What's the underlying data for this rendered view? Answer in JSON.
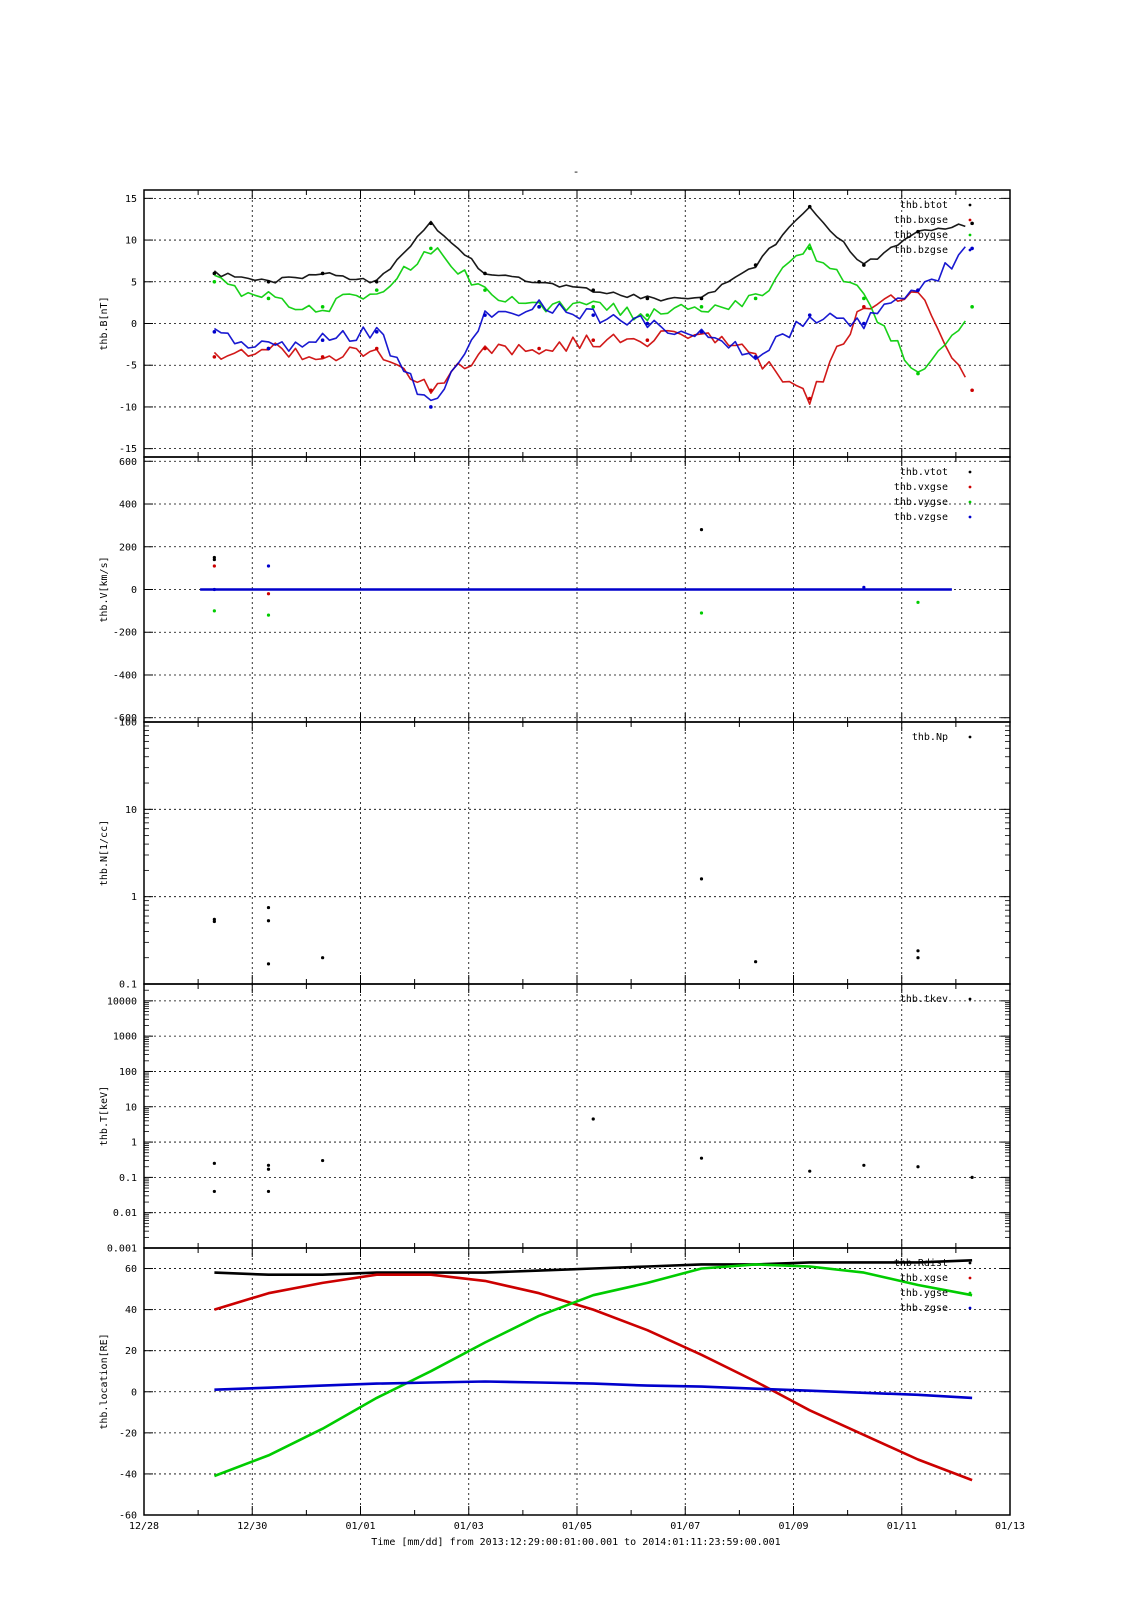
{
  "page": {
    "title": "-",
    "footer": "Time [mm/dd]  from 2013:12:29:00:01:00.001  to  2014:01:11:23:59:00.001"
  },
  "colors": {
    "black": "#000000",
    "red": "#cc0000",
    "green": "#00cc00",
    "blue": "#0000cc"
  },
  "chart_data": [
    {
      "type": "scatter",
      "ylabel": "thb.B[nT]",
      "ylim": [
        -16,
        16
      ],
      "yticks": [
        -15,
        -10,
        -5,
        0,
        5,
        10,
        15
      ],
      "x_range": [
        "2013-12-28",
        "2014-01-13"
      ],
      "series": [
        {
          "name": "thb.btot",
          "color": "black",
          "x": [
            "12/29",
            "12/30",
            "12/31",
            "01/01",
            "01/02",
            "01/03",
            "01/04",
            "01/05",
            "01/06",
            "01/07",
            "01/08",
            "01/09",
            "01/10",
            "01/11",
            "01/12"
          ],
          "values": [
            6,
            5,
            6,
            5,
            12,
            6,
            5,
            4,
            3,
            3,
            7,
            14,
            7,
            11,
            12
          ]
        },
        {
          "name": "thb.bxgse",
          "color": "red",
          "x": [
            "12/29",
            "12/30",
            "12/31",
            "01/01",
            "01/02",
            "01/03",
            "01/04",
            "01/05",
            "01/06",
            "01/07",
            "01/08",
            "01/09",
            "01/10",
            "01/11",
            "01/12"
          ],
          "values": [
            -4,
            -3,
            -4,
            -3,
            -8,
            -3,
            -3,
            -2,
            -2,
            -1,
            -4,
            -9,
            2,
            4,
            -8
          ]
        },
        {
          "name": "thb.bygse",
          "color": "green",
          "x": [
            "12/29",
            "12/30",
            "12/31",
            "01/01",
            "01/02",
            "01/03",
            "01/04",
            "01/05",
            "01/06",
            "01/07",
            "01/08",
            "01/09",
            "01/10",
            "01/11",
            "01/12"
          ],
          "values": [
            5,
            3,
            2,
            4,
            9,
            4,
            2,
            2,
            1,
            2,
            3,
            9,
            3,
            -6,
            2
          ]
        },
        {
          "name": "thb.bzgse",
          "color": "blue",
          "x": [
            "12/29",
            "12/30",
            "12/31",
            "01/01",
            "01/02",
            "01/03",
            "01/04",
            "01/05",
            "01/06",
            "01/07",
            "01/08",
            "01/09",
            "01/10",
            "01/11",
            "01/12"
          ],
          "values": [
            -1,
            -3,
            -2,
            -1,
            -10,
            1,
            2,
            1,
            0,
            -1,
            -4,
            1,
            0,
            4,
            9
          ]
        }
      ]
    },
    {
      "type": "scatter",
      "ylabel": "thb.V[km/s]",
      "ylim": [
        -620,
        620
      ],
      "yticks": [
        -600,
        -400,
        -200,
        0,
        200,
        400,
        600
      ],
      "series": [
        {
          "name": "thb.vtot",
          "color": "black",
          "x": [
            "12/29",
            "12/29",
            "01/07"
          ],
          "values": [
            150,
            140,
            280
          ]
        },
        {
          "name": "thb.vxgse",
          "color": "red",
          "x": [
            "12/29",
            "12/30"
          ],
          "values": [
            110,
            -20
          ]
        },
        {
          "name": "thb.vygse",
          "color": "green",
          "x": [
            "12/29",
            "12/30",
            "01/07",
            "01/11"
          ],
          "values": [
            -100,
            -120,
            -110,
            -60
          ]
        },
        {
          "name": "thb.vzgse",
          "color": "blue",
          "x": [
            "12/29",
            "12/30",
            "01/10"
          ],
          "values": [
            0,
            110,
            10
          ]
        }
      ],
      "baseline": {
        "series": "thb.vzgse",
        "value": 0,
        "x_start": "12/29",
        "x_end": "01/12"
      }
    },
    {
      "type": "scatter",
      "ylabel": "thb.N[1/cc]",
      "yscale": "log",
      "ylim": [
        0.1,
        100
      ],
      "yticks": [
        "0.1",
        "1",
        "10",
        "100"
      ],
      "series": [
        {
          "name": "thb.Np",
          "color": "black",
          "x": [
            "12/29",
            "12/29",
            "12/30",
            "12/30",
            "12/30",
            "12/31",
            "01/07",
            "01/08",
            "01/11",
            "01/11"
          ],
          "values": [
            0.55,
            0.52,
            0.75,
            0.53,
            0.17,
            0.2,
            1.6,
            0.18,
            0.24,
            0.2
          ]
        }
      ]
    },
    {
      "type": "scatter",
      "ylabel": "thb.T[keV]",
      "yscale": "log",
      "ylim": [
        0.001,
        30000
      ],
      "yticks": [
        "0.001",
        "0.01",
        "0.1",
        "1",
        "10",
        "100",
        "1000",
        "10000"
      ],
      "series": [
        {
          "name": "thb.tkev",
          "color": "black",
          "x": [
            "12/29",
            "12/29",
            "12/30",
            "12/30",
            "12/30",
            "12/31",
            "01/05",
            "01/07",
            "01/09",
            "01/10",
            "01/11",
            "01/12"
          ],
          "values": [
            0.25,
            0.04,
            0.22,
            0.17,
            0.04,
            0.3,
            4.5,
            0.35,
            0.15,
            0.22,
            0.2,
            0.1
          ]
        }
      ]
    },
    {
      "type": "line",
      "ylabel": "thb.location[RE]",
      "ylim": [
        -60,
        70
      ],
      "yticks": [
        -60,
        -40,
        -20,
        0,
        20,
        40,
        60
      ],
      "xlabel": "Time [mm/dd]  from 2013:12:29:00:01:00.001  to  2014:01:11:23:59:00.001",
      "xticks": [
        "12/28",
        "12/30",
        "01/01",
        "01/03",
        "01/05",
        "01/07",
        "01/09",
        "01/11",
        "01/13"
      ],
      "series": [
        {
          "name": "thb.Rdist",
          "color": "black",
          "x": [
            "12/29",
            "12/30",
            "12/31",
            "01/01",
            "01/02",
            "01/03",
            "01/04",
            "01/05",
            "01/06",
            "01/07",
            "01/08",
            "01/09",
            "01/10",
            "01/11",
            "01/12"
          ],
          "values": [
            58,
            57,
            57,
            58,
            58,
            58,
            59,
            60,
            61,
            62,
            62,
            63,
            63,
            63,
            64
          ]
        },
        {
          "name": "thb.xgse",
          "color": "red",
          "x": [
            "12/29",
            "12/30",
            "12/31",
            "01/01",
            "01/02",
            "01/03",
            "01/04",
            "01/05",
            "01/06",
            "01/07",
            "01/08",
            "01/09",
            "01/10",
            "01/11",
            "01/12"
          ],
          "values": [
            40,
            48,
            53,
            57,
            57,
            54,
            48,
            40,
            30,
            18,
            5,
            -9,
            -21,
            -33,
            -43
          ]
        },
        {
          "name": "thb.ygse",
          "color": "green",
          "x": [
            "12/29",
            "12/30",
            "12/31",
            "01/01",
            "01/02",
            "01/03",
            "01/04",
            "01/05",
            "01/06",
            "01/07",
            "01/08",
            "01/09",
            "01/10",
            "01/11",
            "01/12"
          ],
          "values": [
            -41,
            -31,
            -18,
            -3,
            10,
            24,
            37,
            47,
            53,
            60,
            62,
            61,
            58,
            52,
            47
          ]
        },
        {
          "name": "thb.zgse",
          "color": "blue",
          "x": [
            "12/29",
            "12/30",
            "12/31",
            "01/01",
            "01/02",
            "01/03",
            "01/04",
            "01/05",
            "01/06",
            "01/07",
            "01/08",
            "01/09",
            "01/10",
            "01/11",
            "01/12"
          ],
          "values": [
            1,
            2,
            3,
            4,
            4.5,
            5,
            4.5,
            4,
            3,
            2.5,
            1.5,
            0.5,
            -0.5,
            -1.5,
            -3
          ]
        }
      ]
    }
  ]
}
